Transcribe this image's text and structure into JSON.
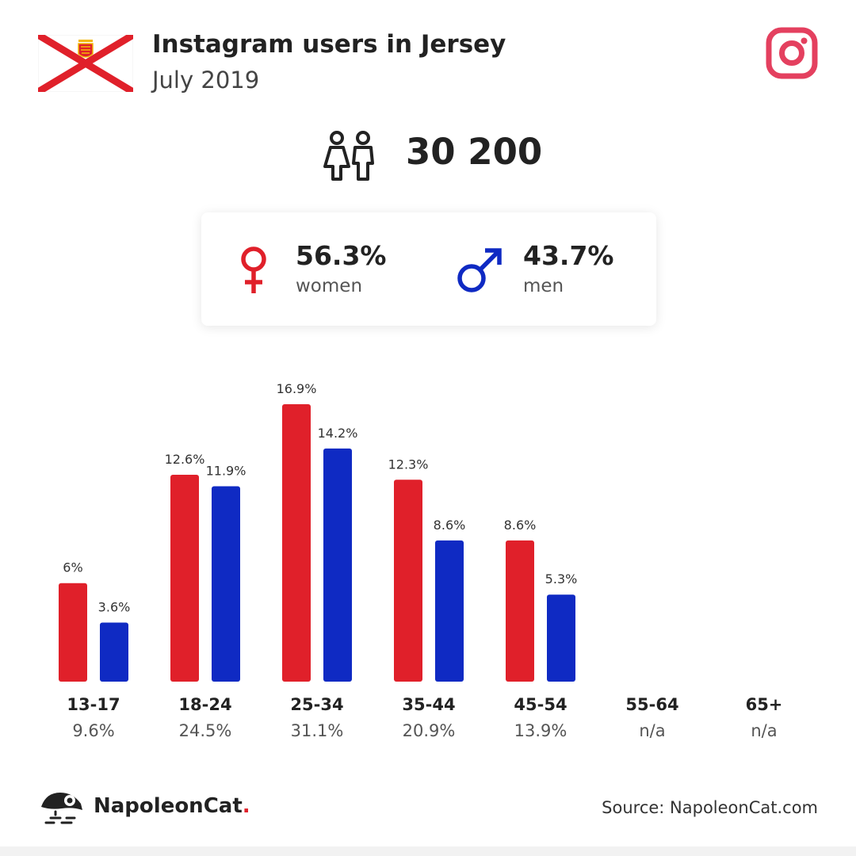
{
  "header": {
    "title": "Instagram users in Jersey",
    "subtitle": "July 2019"
  },
  "total": {
    "value": "30 200"
  },
  "gender": {
    "women": {
      "percent": "56.3%",
      "label": "women"
    },
    "men": {
      "percent": "43.7%",
      "label": "men"
    }
  },
  "colors": {
    "women": "#e0202a",
    "men": "#0f2ac3",
    "instagram": "#e4405f"
  },
  "icons": [
    "jersey-flag-icon",
    "instagram-icon",
    "users-icon",
    "female-symbol-icon",
    "male-symbol-icon",
    "napoleoncat-logo-icon"
  ],
  "chart_data": {
    "type": "bar",
    "categories": [
      "13-17",
      "18-24",
      "25-34",
      "35-44",
      "45-54",
      "55-64",
      "65+"
    ],
    "category_shares": [
      "9.6%",
      "24.5%",
      "31.1%",
      "20.9%",
      "13.9%",
      "n/a",
      "n/a"
    ],
    "series": [
      {
        "values": [
          6,
          12.6,
          16.9,
          12.3,
          8.6,
          null,
          null
        ],
        "labels": [
          "6%",
          "12.6%",
          "16.9%",
          "12.3%",
          "8.6%",
          "",
          ""
        ]
      },
      {
        "values": [
          3.6,
          11.9,
          14.2,
          8.6,
          5.3,
          null,
          null
        ],
        "labels": [
          "3.6%",
          "11.9%",
          "14.2%",
          "8.6%",
          "5.3%",
          "",
          ""
        ]
      }
    ],
    "title": "",
    "xlabel": "",
    "ylabel": "",
    "ylim": [
      0,
      17
    ]
  },
  "footer": {
    "brand": "NapoleonCat",
    "brand_dot": ".",
    "source": "Source: NapoleonCat.com"
  }
}
